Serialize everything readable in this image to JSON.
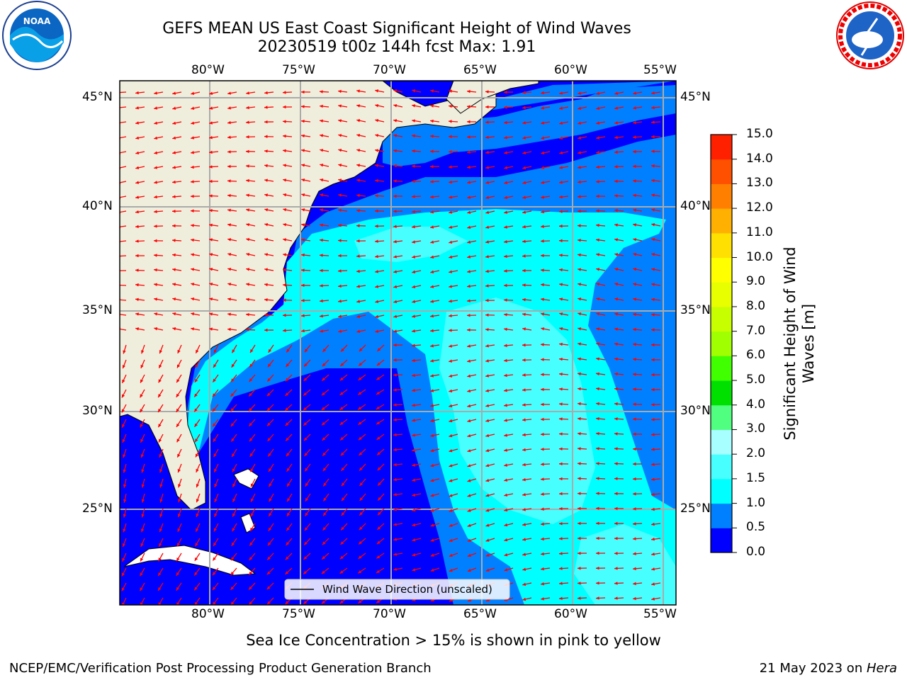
{
  "header": {
    "title_line1": "GEFS MEAN US East Coast Significant Height of Wind Waves",
    "title_line2": "20230519 t00z 144h fcst   Max: 1.91"
  },
  "logos": {
    "left_text": "NOAA",
    "right_text": "NATIONAL WEATHER SERVICE"
  },
  "map": {
    "lon_labels": [
      "80°W",
      "75°W",
      "70°W",
      "65°W",
      "60°W",
      "55°W"
    ],
    "lat_labels": [
      "45°N",
      "40°N",
      "35°N",
      "30°N",
      "25°N"
    ],
    "legend_label": "Wind Wave Direction (unscaled)",
    "arrow_color": "#ff0000",
    "land_color": "#efeedc"
  },
  "colorbar": {
    "label_line1": "Significant Height of Wind",
    "label_line2": "Waves [m]",
    "ticks": [
      "0.0",
      "0.5",
      "1.0",
      "1.5",
      "2.0",
      "3.0",
      "4.0",
      "5.0",
      "6.0",
      "7.0",
      "8.0",
      "9.0",
      "10.0",
      "11.0",
      "12.0",
      "13.0",
      "14.0",
      "15.0"
    ],
    "colors": [
      "#0000ff",
      "#0080ff",
      "#00ffff",
      "#48ffff",
      "#a8ffff",
      "#50ff80",
      "#00e000",
      "#40ff00",
      "#a0ff00",
      "#c8ff00",
      "#e8ff00",
      "#ffff00",
      "#ffe000",
      "#ffb000",
      "#ff8000",
      "#ff5000",
      "#ff2000",
      "#ff0000"
    ]
  },
  "chart_data": {
    "type": "heatmap",
    "title": "GEFS MEAN US East Coast Significant Height of Wind Waves",
    "subtitle": "20230519 t00z 144h fcst   Max: 1.91",
    "variable": "Significant Height of Wind Waves [m]",
    "max_value": 1.91,
    "lon_range": [
      -85,
      -55
    ],
    "lat_range": [
      20.5,
      46
    ],
    "levels": [
      0.0,
      0.5,
      1.0,
      1.5,
      2.0,
      3.0,
      4.0,
      5.0,
      6.0,
      7.0,
      8.0,
      9.0,
      10.0,
      11.0,
      12.0,
      13.0,
      14.0,
      15.0
    ],
    "grid": true,
    "legend_position": "bottom-center"
  },
  "annotation": "Sea Ice Concentration > 15% is shown in pink to yellow",
  "footer": {
    "left": "NCEP/EMC/Verification Post Processing Product Generation Branch",
    "right_date": "21 May 2023 on ",
    "right_host": "Hera"
  }
}
